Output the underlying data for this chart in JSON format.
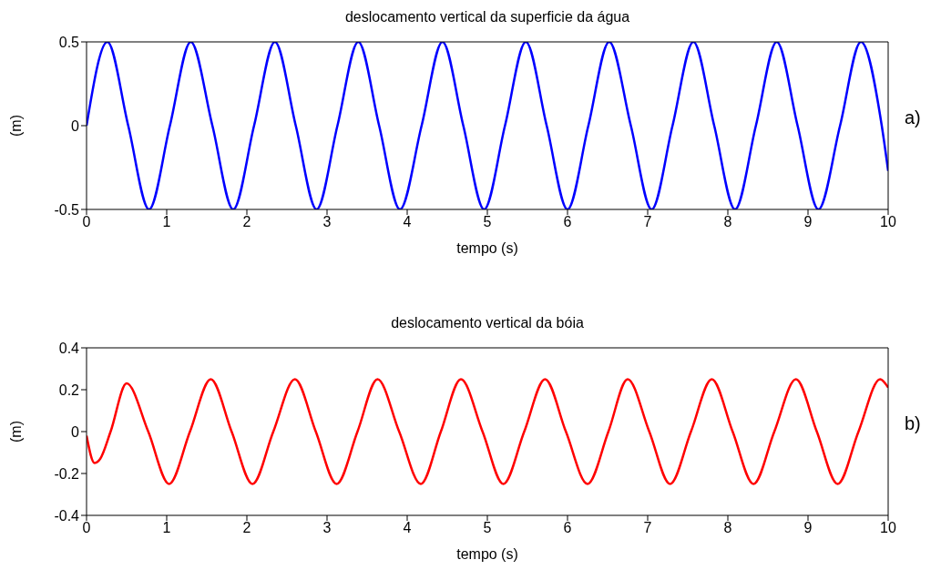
{
  "chart_data": [
    {
      "type": "line",
      "title": "deslocamento vertical da superficie da água",
      "xlabel": "tempo (s)",
      "ylabel": "(m)",
      "annotations": [
        "a)"
      ],
      "xlim": [
        0,
        10
      ],
      "xticks": [
        0,
        1,
        2,
        3,
        4,
        5,
        6,
        7,
        8,
        9,
        10
      ],
      "ylim": [
        -0.5,
        0.5
      ],
      "yticks": [
        -0.5,
        0,
        0.5
      ],
      "grid": false,
      "legend": false,
      "marker": "none",
      "line_style": "solid",
      "x": [
        0,
        0.26,
        0.52,
        0.78,
        1.04,
        1.3,
        1.57,
        1.83,
        2.09,
        2.35,
        2.61,
        2.87,
        3.13,
        3.39,
        3.65,
        3.91,
        4.18,
        4.44,
        4.7,
        4.96,
        5.22,
        5.48,
        5.74,
        6.0,
        6.26,
        6.52,
        6.79,
        7.05,
        7.31,
        7.57,
        7.83,
        8.09,
        8.35,
        8.61,
        8.87,
        9.13,
        9.4,
        9.66,
        9.92,
        10
      ],
      "series": [
        {
          "color": "#0000ff",
          "values": [
            0,
            0.5,
            0,
            -0.5,
            0,
            0.5,
            0,
            -0.5,
            0,
            0.5,
            0,
            -0.5,
            0,
            0.5,
            0,
            -0.5,
            0,
            0.5,
            0,
            -0.5,
            0,
            0.5,
            0,
            -0.5,
            0,
            0.5,
            0,
            -0.5,
            0,
            0.5,
            0,
            -0.5,
            0,
            0.5,
            0,
            -0.5,
            0,
            0.5,
            0,
            -0.27
          ]
        }
      ]
    },
    {
      "type": "line",
      "title": "deslocamento vertical da bóia",
      "xlabel": "tempo (s)",
      "ylabel": "(m)",
      "annotations": [
        "b)"
      ],
      "xlim": [
        0,
        10
      ],
      "xticks": [
        0,
        1,
        2,
        3,
        4,
        5,
        6,
        7,
        8,
        9,
        10
      ],
      "ylim": [
        -0.4,
        0.4
      ],
      "yticks": [
        -0.4,
        -0.2,
        0,
        0.2,
        0.4
      ],
      "grid": false,
      "legend": false,
      "marker": "none",
      "line_style": "solid",
      "x": [
        0,
        0.1,
        0.17,
        0.3,
        0.5,
        0.77,
        1.03,
        1.29,
        1.55,
        1.81,
        2.07,
        2.33,
        2.6,
        2.86,
        3.12,
        3.38,
        3.63,
        3.9,
        4.17,
        4.42,
        4.67,
        4.94,
        5.2,
        5.46,
        5.72,
        5.98,
        6.25,
        6.51,
        6.75,
        7.02,
        7.28,
        7.54,
        7.8,
        8.06,
        8.32,
        8.58,
        8.85,
        9.11,
        9.37,
        9.63,
        9.9,
        10
      ],
      "series": [
        {
          "color": "#ff0000",
          "values": [
            -0.02,
            -0.15,
            -0.13,
            0,
            0.23,
            0,
            -0.25,
            0,
            0.25,
            0,
            -0.25,
            0,
            0.25,
            0,
            -0.25,
            0,
            0.25,
            0,
            -0.25,
            0,
            0.25,
            0,
            -0.25,
            0,
            0.25,
            0,
            -0.25,
            0,
            0.25,
            0,
            -0.25,
            0,
            0.25,
            0,
            -0.25,
            0,
            0.25,
            0,
            -0.25,
            0,
            0.25,
            0.21
          ]
        }
      ]
    }
  ]
}
